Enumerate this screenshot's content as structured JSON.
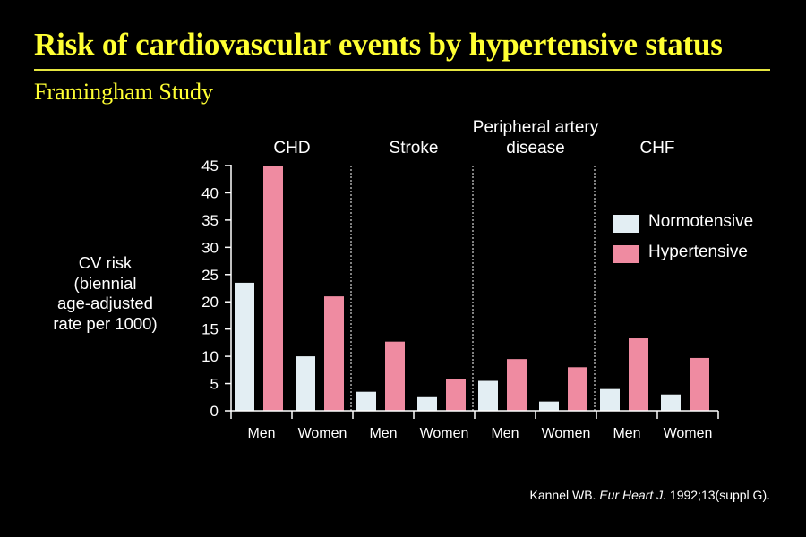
{
  "slide": {
    "title": "Risk of cardiovascular events by hypertensive status",
    "subtitle": "Framingham Study"
  },
  "colors": {
    "title": "#ffff33",
    "normotensive": "#e3eef3",
    "hypertensive": "#ef8ba1"
  },
  "chart_data": {
    "type": "bar",
    "ylabel_lines": [
      "CV risk",
      "(biennial",
      "age-adjusted",
      "rate per 1000)"
    ],
    "ylim": [
      0,
      45
    ],
    "yticks": [
      0,
      5,
      10,
      15,
      20,
      25,
      30,
      35,
      40,
      45
    ],
    "groups": [
      {
        "label": "CHD",
        "label_lines": [
          "CHD"
        ],
        "sexes": [
          "Men",
          "Women"
        ]
      },
      {
        "label": "Stroke",
        "label_lines": [
          "Stroke"
        ],
        "sexes": [
          "Men",
          "Women"
        ]
      },
      {
        "label": "Peripheral artery disease",
        "label_lines": [
          "Peripheral artery",
          "disease"
        ],
        "sexes": [
          "Men",
          "Women"
        ]
      },
      {
        "label": "CHF",
        "label_lines": [
          "CHF"
        ],
        "sexes": [
          "Men",
          "Women"
        ]
      }
    ],
    "categories": [
      "Men",
      "Women",
      "Men",
      "Women",
      "Men",
      "Women",
      "Men",
      "Women"
    ],
    "series": [
      {
        "name": "Normotensive",
        "values": [
          23.5,
          10,
          3.5,
          2.5,
          5.5,
          1.7,
          4,
          3
        ]
      },
      {
        "name": "Hypertensive",
        "values": [
          45,
          21,
          12.7,
          5.8,
          9.5,
          8,
          13.3,
          9.7
        ]
      }
    ],
    "legend": {
      "position": "right",
      "entries": [
        "Normotensive",
        "Hypertensive"
      ]
    }
  },
  "citation": {
    "author": "Kannel WB. ",
    "journal": "Eur Heart J.",
    "details": " 1992;13(suppl G)."
  }
}
